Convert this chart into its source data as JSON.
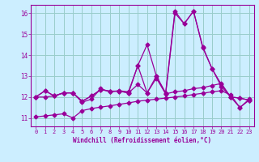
{
  "title": "",
  "xlabel": "Windchill (Refroidissement éolien,°C)",
  "background_color": "#cceeff",
  "line_color": "#990099",
  "grid_color": "#99cccc",
  "xlim": [
    -0.5,
    23.5
  ],
  "ylim": [
    10.6,
    16.4
  ],
  "yticks": [
    11,
    12,
    13,
    14,
    15,
    16
  ],
  "xticks": [
    0,
    1,
    2,
    3,
    4,
    5,
    6,
    7,
    8,
    9,
    10,
    11,
    12,
    13,
    14,
    15,
    16,
    17,
    18,
    19,
    20,
    21,
    22,
    23
  ],
  "line1_x": [
    0,
    1,
    2,
    3,
    4,
    5,
    6,
    7,
    8,
    9,
    10,
    11,
    12,
    13,
    14,
    15,
    16,
    17,
    18,
    19,
    20,
    21,
    22,
    23
  ],
  "line1_y": [
    12.0,
    12.3,
    12.05,
    12.2,
    12.2,
    11.75,
    11.9,
    12.4,
    12.25,
    12.3,
    12.25,
    13.5,
    14.5,
    13.0,
    12.2,
    16.1,
    15.5,
    16.1,
    14.4,
    13.35,
    12.6,
    12.0,
    11.5,
    11.9
  ],
  "line2_x": [
    0,
    1,
    2,
    3,
    4,
    5,
    6,
    7,
    8,
    9,
    10,
    11,
    12,
    13,
    14,
    15,
    16,
    17,
    18,
    19,
    20,
    21,
    22,
    23
  ],
  "line2_y": [
    12.0,
    12.3,
    12.05,
    12.2,
    12.2,
    11.8,
    12.05,
    12.35,
    12.28,
    12.28,
    12.2,
    13.5,
    12.2,
    13.0,
    12.15,
    16.0,
    15.5,
    16.1,
    14.35,
    13.35,
    12.5,
    12.0,
    11.95,
    11.85
  ],
  "line3_x": [
    0,
    1,
    2,
    3,
    4,
    5,
    6,
    7,
    8,
    9,
    10,
    11,
    12,
    13,
    14,
    15,
    16,
    17,
    18,
    19,
    20,
    21,
    22,
    23
  ],
  "line3_y": [
    12.0,
    12.0,
    12.05,
    12.2,
    12.2,
    11.8,
    12.05,
    12.35,
    12.28,
    12.28,
    12.2,
    12.6,
    12.2,
    12.9,
    12.15,
    12.25,
    12.3,
    12.4,
    12.45,
    12.55,
    12.65,
    12.0,
    11.95,
    11.85
  ],
  "line4_x": [
    0,
    1,
    2,
    3,
    4,
    5,
    6,
    7,
    8,
    9,
    10,
    11,
    12,
    13,
    14,
    15,
    16,
    17,
    18,
    19,
    20,
    21,
    22,
    23
  ],
  "line4_y": [
    11.05,
    11.1,
    11.15,
    11.2,
    11.0,
    11.35,
    11.45,
    11.52,
    11.58,
    11.65,
    11.72,
    11.8,
    11.85,
    11.9,
    11.95,
    12.0,
    12.05,
    12.12,
    12.18,
    12.25,
    12.3,
    12.1,
    11.5,
    11.85
  ],
  "marker": "D",
  "markersize": 2.5,
  "linewidth": 0.9
}
